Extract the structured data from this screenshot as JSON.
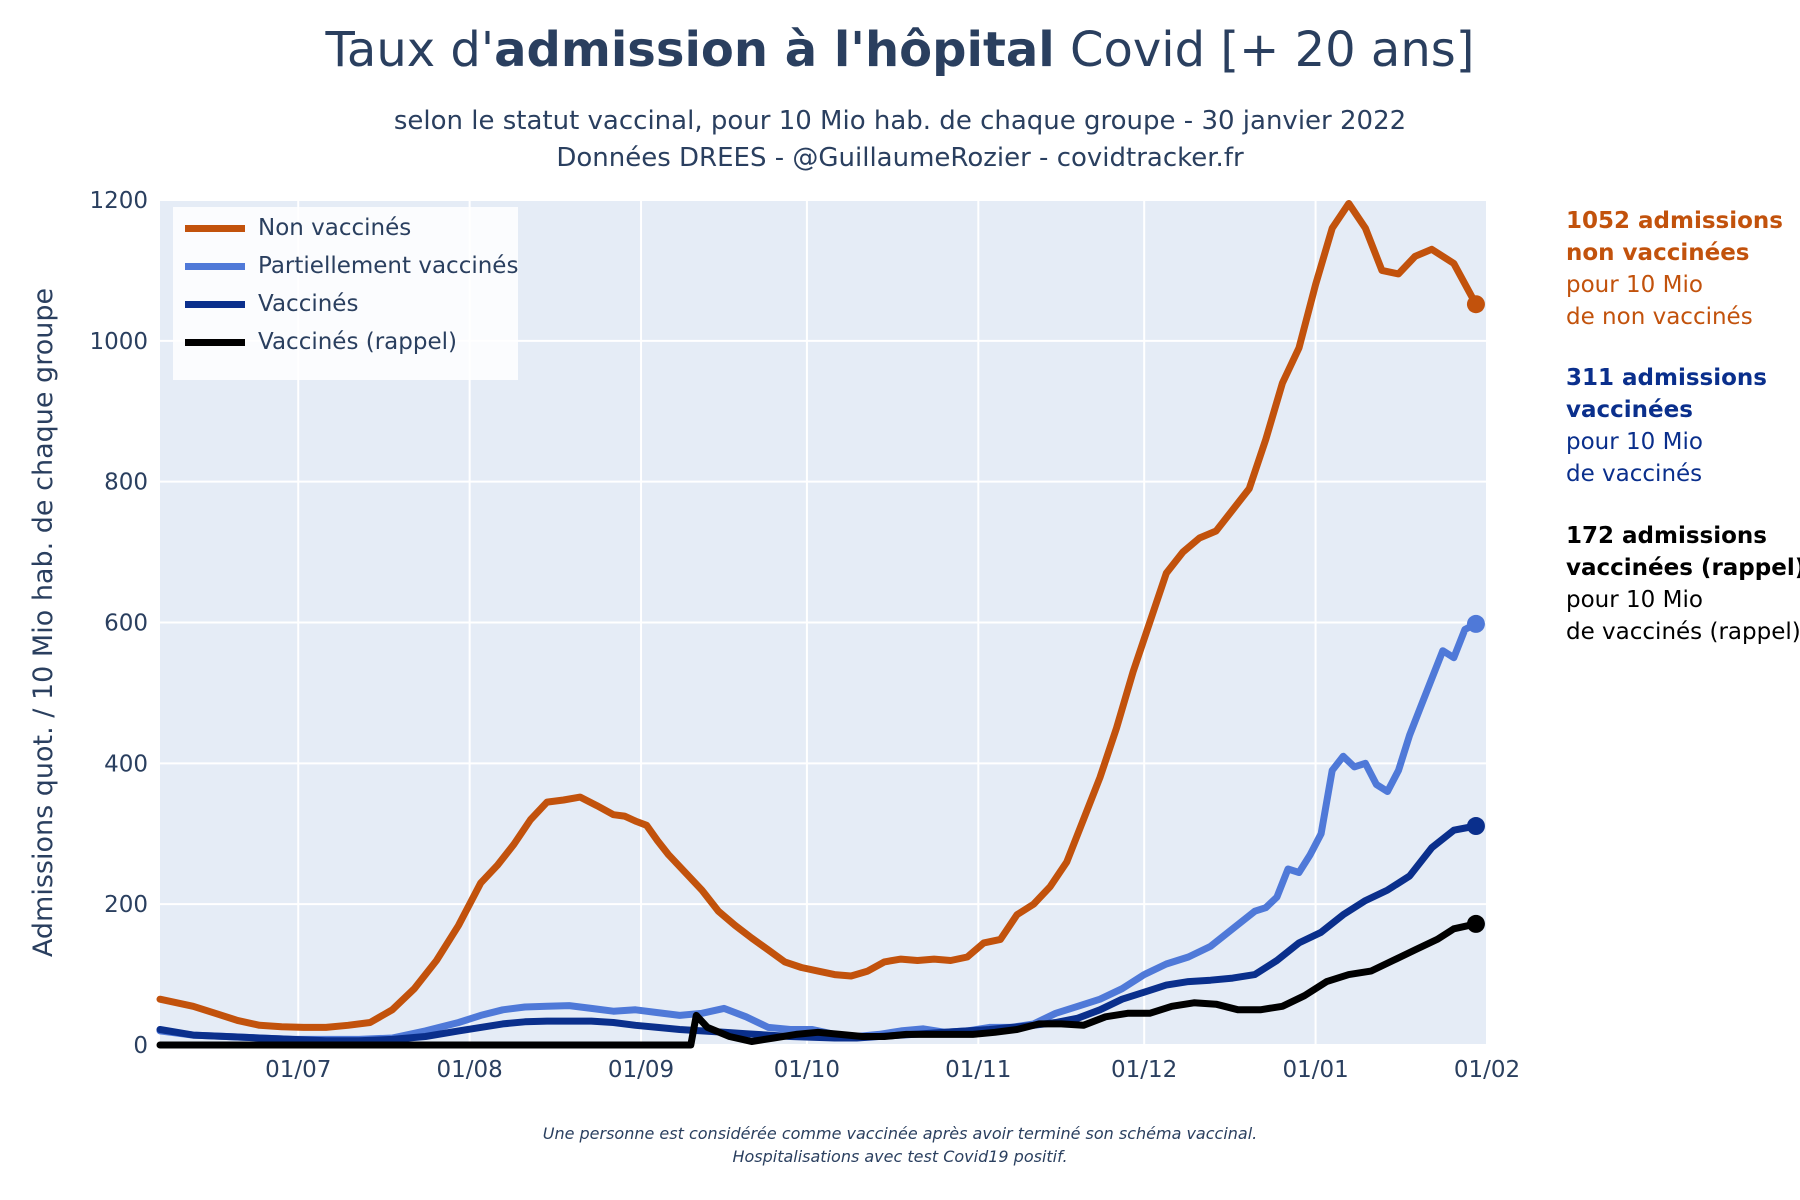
{
  "header": {
    "title_pre": "Taux d'",
    "title_bold": "admission à l'hôpital",
    "title_post": " Covid [+ 20 ans]",
    "subtitle_line1": "selon le statut vaccinal, pour 10 Mio hab. de chaque groupe - 30 janvier 2022",
    "subtitle_line2": "Données DREES - @GuillaumeRozier - covidtracker.fr"
  },
  "side_annotations": [
    {
      "bold1": "1052 admissions",
      "bold2": "non vaccinées",
      "text1": "pour 10 Mio",
      "text2": "de non vaccinés",
      "color": "#c2520c"
    },
    {
      "bold1": "311 admissions",
      "bold2": "vaccinées",
      "text1": "pour 10 Mio",
      "text2": "de vaccinés",
      "color": "#0a2f8c"
    },
    {
      "bold1": "172 admissions",
      "bold2": "vaccinées (rappel)",
      "text1": "pour 10 Mio",
      "text2": "de vaccinés (rappel)",
      "color": "#000000"
    }
  ],
  "footnote": {
    "line1": "Une personne est considérée comme vaccinée après avoir terminé son schéma vaccinal.",
    "line2": "Hospitalisations avec test Covid19 positif."
  },
  "chart_data": {
    "type": "line",
    "title": "Taux d'admission à l'hôpital Covid [+ 20 ans]",
    "xlabel": "",
    "ylabel": "Admissions quot. / 10 Mio hab. de chaque groupe",
    "x_tick_labels": [
      "01/07",
      "01/08",
      "01/09",
      "01/10",
      "01/11",
      "01/12",
      "01/01",
      "01/02"
    ],
    "x_tick_days": [
      25,
      56,
      87,
      117,
      148,
      178,
      209,
      240
    ],
    "x_range_days": [
      0,
      240
    ],
    "ylim": [
      0,
      1200
    ],
    "y_ticks": [
      0,
      200,
      400,
      600,
      800,
      1000,
      1200
    ],
    "grid": true,
    "legend_placement": "top-left",
    "background": "#e5ecf6",
    "series": [
      {
        "name": "Non vaccinés",
        "color": "#c2520c",
        "x": [
          0,
          6,
          10,
          14,
          18,
          22,
          26,
          30,
          34,
          38,
          42,
          46,
          50,
          54,
          58,
          61,
          64,
          67,
          70,
          73,
          76,
          79,
          82,
          84,
          86,
          88,
          90,
          92,
          95,
          98,
          101,
          104,
          107,
          110,
          113,
          116,
          119,
          122,
          125,
          128,
          131,
          134,
          137,
          140,
          143,
          146,
          149,
          152,
          155,
          158,
          161,
          164,
          167,
          170,
          173,
          176,
          179,
          182,
          185,
          188,
          191,
          194,
          197,
          200,
          203,
          206,
          209,
          212,
          215,
          218,
          221,
          224,
          227,
          230,
          234,
          238
        ],
        "y": [
          65,
          55,
          45,
          35,
          28,
          26,
          25,
          25,
          28,
          32,
          50,
          80,
          120,
          170,
          230,
          255,
          285,
          320,
          345,
          348,
          352,
          340,
          327,
          325,
          318,
          312,
          290,
          270,
          245,
          220,
          190,
          170,
          152,
          135,
          118,
          110,
          105,
          100,
          98,
          105,
          118,
          122,
          120,
          122,
          120,
          125,
          145,
          150,
          185,
          200,
          225,
          260,
          320,
          380,
          450,
          530,
          600,
          670,
          700,
          720,
          730,
          760,
          790,
          860,
          940,
          990,
          1080,
          1160,
          1195,
          1160,
          1100,
          1095,
          1120,
          1130,
          1110,
          1052
        ]
      },
      {
        "name": "Partiellement vaccinés",
        "color": "#4f79d8",
        "x": [
          0,
          6,
          12,
          18,
          24,
          30,
          36,
          42,
          48,
          54,
          58,
          62,
          66,
          70,
          74,
          78,
          82,
          86,
          90,
          94,
          98,
          102,
          106,
          110,
          114,
          118,
          122,
          126,
          130,
          134,
          138,
          142,
          146,
          150,
          154,
          158,
          162,
          166,
          170,
          174,
          178,
          182,
          186,
          190,
          194,
          198,
          200,
          202,
          204,
          206,
          208,
          210,
          212,
          214,
          216,
          218,
          220,
          222,
          224,
          226,
          228,
          230,
          232,
          234,
          236,
          238
        ],
        "y": [
          20,
          14,
          12,
          10,
          8,
          8,
          8,
          10,
          20,
          32,
          42,
          50,
          54,
          55,
          56,
          52,
          48,
          50,
          46,
          42,
          45,
          52,
          40,
          25,
          22,
          22,
          15,
          12,
          15,
          20,
          23,
          18,
          20,
          25,
          25,
          30,
          45,
          55,
          65,
          80,
          100,
          115,
          125,
          140,
          165,
          190,
          195,
          210,
          250,
          245,
          270,
          300,
          390,
          410,
          395,
          400,
          370,
          360,
          390,
          440,
          480,
          520,
          560,
          550,
          590,
          598
        ]
      },
      {
        "name": "Vaccinés",
        "color": "#0a2f8c",
        "x": [
          0,
          6,
          12,
          18,
          24,
          30,
          36,
          42,
          48,
          54,
          58,
          62,
          66,
          70,
          74,
          78,
          82,
          86,
          90,
          94,
          98,
          102,
          106,
          110,
          114,
          118,
          122,
          126,
          130,
          134,
          138,
          142,
          146,
          150,
          154,
          158,
          162,
          166,
          170,
          174,
          178,
          182,
          186,
          190,
          194,
          198,
          202,
          206,
          210,
          214,
          218,
          222,
          226,
          230,
          234,
          238
        ],
        "y": [
          22,
          14,
          12,
          10,
          8,
          6,
          6,
          8,
          12,
          20,
          25,
          30,
          33,
          34,
          34,
          34,
          32,
          28,
          25,
          22,
          20,
          18,
          16,
          14,
          12,
          11,
          10,
          10,
          12,
          14,
          16,
          18,
          20,
          22,
          25,
          28,
          32,
          38,
          50,
          65,
          75,
          85,
          90,
          92,
          95,
          100,
          120,
          145,
          160,
          185,
          205,
          220,
          240,
          280,
          305,
          311
        ]
      },
      {
        "name": "Vaccinés (rappel)",
        "color": "#000000",
        "x": [
          0,
          20,
          40,
          60,
          80,
          96,
          97,
          99,
          103,
          107,
          111,
          115,
          119,
          123,
          127,
          131,
          135,
          139,
          143,
          147,
          151,
          155,
          159,
          163,
          167,
          171,
          175,
          179,
          183,
          187,
          191,
          195,
          199,
          203,
          207,
          211,
          215,
          219,
          223,
          227,
          231,
          234,
          238
        ],
        "y": [
          0,
          0,
          0,
          0,
          0,
          0,
          42,
          25,
          12,
          5,
          10,
          15,
          18,
          15,
          12,
          12,
          15,
          15,
          15,
          15,
          18,
          22,
          30,
          30,
          28,
          40,
          45,
          45,
          55,
          60,
          58,
          50,
          50,
          55,
          70,
          90,
          100,
          105,
          120,
          135,
          150,
          165,
          172
        ]
      }
    ]
  }
}
